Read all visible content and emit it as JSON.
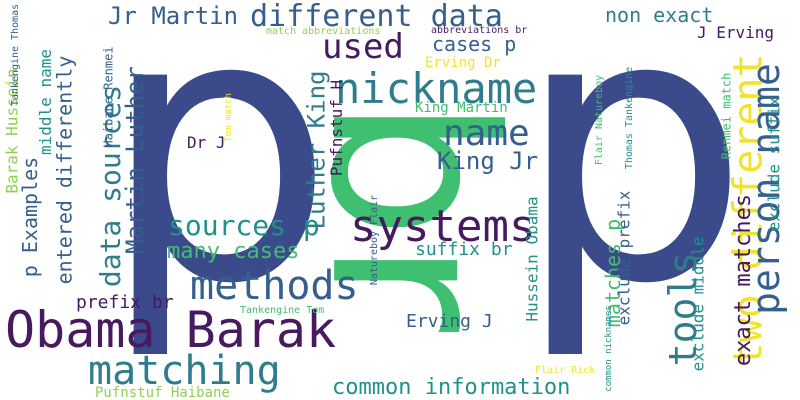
{
  "colors": {
    "background": "#ffffff",
    "navy": "#3b4a8a",
    "green": "#3fbf70",
    "purple": "#47195f",
    "teal": "#2f7d8c",
    "blue": "#355f8d",
    "yellow": "#f0e42a",
    "lime": "#8fd14f",
    "cyan": "#21918c"
  },
  "words": [
    {
      "text": "p"
    },
    {
      "text": "p"
    },
    {
      "text": "br"
    },
    {
      "text": "Obama Barak"
    },
    {
      "text": "systems"
    },
    {
      "text": "nickname"
    },
    {
      "text": "methods"
    },
    {
      "text": "matching"
    },
    {
      "text": "two different"
    },
    {
      "text": "person name"
    },
    {
      "text": "tools"
    },
    {
      "text": "name"
    },
    {
      "text": "different data"
    },
    {
      "text": "used"
    },
    {
      "text": "Jr Martin"
    },
    {
      "text": "sources p"
    },
    {
      "text": "data sources"
    },
    {
      "text": "common information"
    },
    {
      "text": "many cases"
    },
    {
      "text": "Martin Luther"
    },
    {
      "text": "Luther King"
    },
    {
      "text": "King Jr"
    },
    {
      "text": "non exact"
    },
    {
      "text": "cases p"
    },
    {
      "text": "exact matches"
    },
    {
      "text": "matches p"
    },
    {
      "text": "p Examples"
    },
    {
      "text": "entered differently"
    },
    {
      "text": "Barak Hussein"
    },
    {
      "text": "middle name"
    },
    {
      "text": "prefix br"
    },
    {
      "text": "suffix br"
    },
    {
      "text": "Erving J"
    },
    {
      "text": "Pufnstuf Haibane"
    },
    {
      "text": "Hussein Obama"
    },
    {
      "text": "exclude prefix"
    },
    {
      "text": "exclude middle"
    },
    {
      "text": "exclude suffix"
    },
    {
      "text": "J Erving"
    },
    {
      "text": "Erving Dr"
    },
    {
      "text": "King Martin"
    },
    {
      "text": "Dr J"
    },
    {
      "text": "Pufnstuf H"
    },
    {
      "text": "Haibane Renmei"
    },
    {
      "text": "Tankengine Thomas"
    },
    {
      "text": "match abbreviations"
    },
    {
      "text": "abbreviations br"
    },
    {
      "text": "Tom match"
    },
    {
      "text": "Tankengine Tom"
    },
    {
      "text": "Natureboy Flair"
    },
    {
      "text": "Flair Natureboy"
    },
    {
      "text": "Thomas Tankengine"
    },
    {
      "text": "Renmei match"
    },
    {
      "text": "common nicknames"
    },
    {
      "text": "Flair Rick"
    }
  ]
}
